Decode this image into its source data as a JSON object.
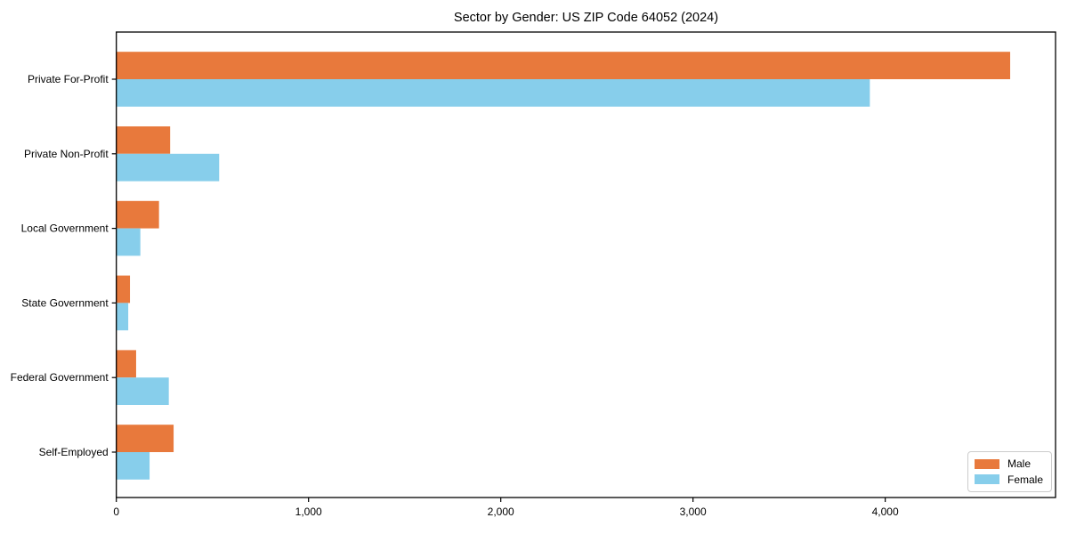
{
  "chart_data": {
    "type": "bar",
    "orientation": "horizontal",
    "title": "Sector by Gender: US ZIP Code 64052 (2024)",
    "categories": [
      "Private For-Profit",
      "Private Non-Profit",
      "Local Government",
      "State Government",
      "Federal Government",
      "Self-Employed"
    ],
    "series": [
      {
        "name": "Male",
        "color": "#E8793C",
        "values": [
          4650,
          280,
          222,
          71,
          103,
          298
        ]
      },
      {
        "name": "Female",
        "color": "#87CEEB",
        "values": [
          3920,
          535,
          125,
          62,
          273,
          173
        ]
      }
    ],
    "xlabel": "",
    "ylabel": "",
    "xlim": [
      0,
      4886
    ],
    "xticks": [
      {
        "value": 0,
        "label": "0"
      },
      {
        "value": 1000,
        "label": "1,000"
      },
      {
        "value": 2000,
        "label": "2,000"
      },
      {
        "value": 3000,
        "label": "3,000"
      },
      {
        "value": 4000,
        "label": "4,000"
      }
    ],
    "grid": false,
    "legend": {
      "position": "lower right"
    }
  },
  "colors": {
    "axis": "#000000",
    "background": "#ffffff",
    "legend_border": "#cccccc"
  }
}
